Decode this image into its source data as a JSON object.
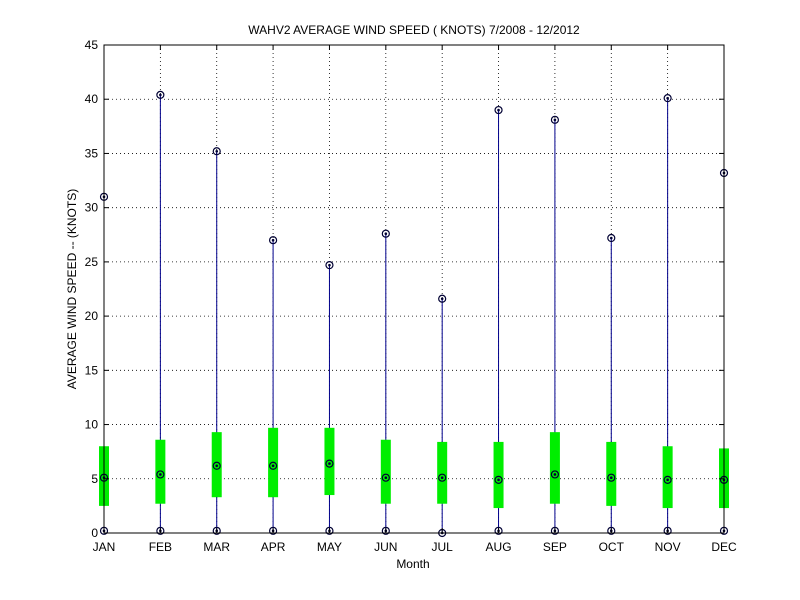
{
  "chart_data": {
    "type": "box",
    "title": "WAHV2  AVERAGE WIND SPEED ( KNOTS) 7/2008 - 12/2012",
    "xlabel": "Month",
    "ylabel": "AVERAGE WIND SPEED -- (KNOTS)",
    "ylim": [
      0,
      45
    ],
    "yticks": [
      "0",
      "5",
      "10",
      "15",
      "20",
      "25",
      "30",
      "35",
      "40",
      "45"
    ],
    "grid": true,
    "categories": [
      "JAN",
      "FEB",
      "MAR",
      "APR",
      "MAY",
      "JUN",
      "JUL",
      "AUG",
      "SEP",
      "OCT",
      "NOV",
      "DEC"
    ],
    "series": [
      {
        "min": [
          0.2,
          0.2,
          0.2,
          0.2,
          0.2,
          0.2,
          0.0,
          0.2,
          0.2,
          0.2,
          0.2,
          0.2
        ],
        "q1": [
          2.5,
          2.7,
          3.3,
          3.3,
          3.5,
          2.7,
          2.7,
          2.3,
          2.7,
          2.5,
          2.3,
          2.3
        ],
        "median": [
          5.1,
          5.4,
          6.2,
          6.2,
          6.4,
          5.1,
          5.1,
          4.9,
          5.4,
          5.1,
          4.9,
          4.9
        ],
        "q3": [
          8.0,
          8.6,
          9.3,
          9.7,
          9.7,
          8.6,
          8.4,
          8.4,
          9.3,
          8.4,
          8.0,
          7.8
        ],
        "max": [
          31.0,
          40.4,
          35.2,
          27.0,
          24.7,
          27.6,
          21.6,
          39.0,
          38.1,
          27.2,
          40.1,
          33.2
        ]
      }
    ],
    "colors": {
      "whisker": "#00008b",
      "box": "#00ee00",
      "marker": "#000033",
      "grid": "#000000"
    }
  }
}
